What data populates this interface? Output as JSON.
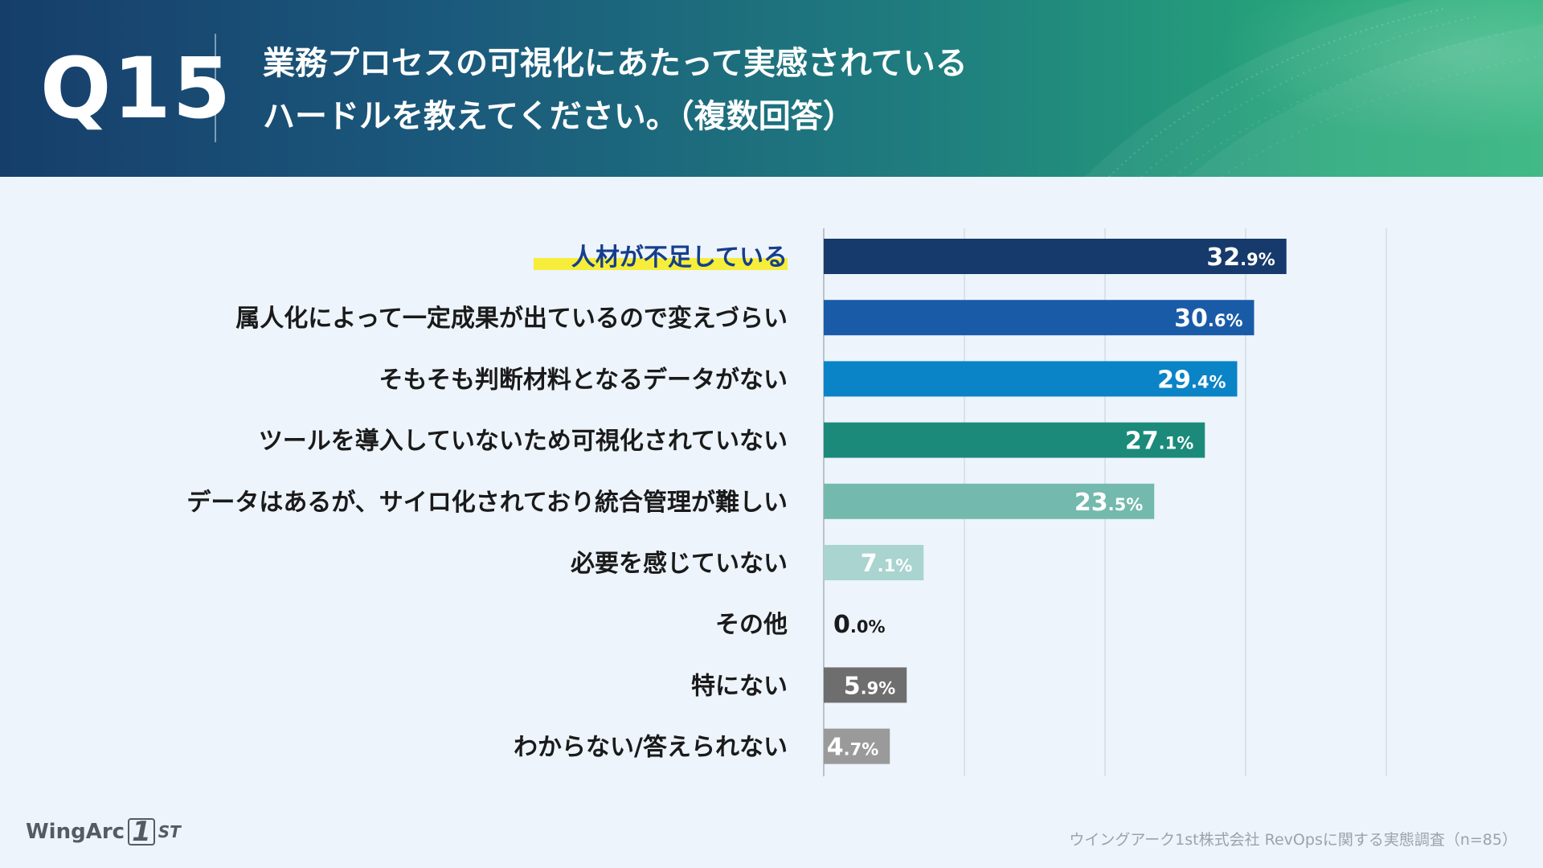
{
  "header": {
    "question_number": "Q15",
    "title_line1": "業務プロセスの可視化にあたって実感されている",
    "title_line2": "ハードルを教えてください。（複数回答）"
  },
  "chart_data": {
    "type": "bar",
    "orientation": "horizontal",
    "title": "業務プロセスの可視化にあたって実感されているハードルを教えてください。（複数回答）",
    "unit": "%",
    "xlim": [
      0,
      40
    ],
    "grid": true,
    "categories": [
      "人材が不足している",
      "属人化によって一定成果が出ているので変えづらい",
      "そもそも判断材料となるデータがない",
      "ツールを導入していないため可視化されていない",
      "データはあるが、サイロ化されており統合管理が難しい",
      "必要を感じていない",
      "その他",
      "特にない",
      "わからない/答えられない"
    ],
    "values": [
      32.9,
      30.6,
      29.4,
      27.1,
      23.5,
      7.1,
      0.0,
      5.9,
      4.7
    ],
    "value_labels": [
      {
        "int": "32",
        "dec": ".9%"
      },
      {
        "int": "30",
        "dec": ".6%"
      },
      {
        "int": "29",
        "dec": ".4%"
      },
      {
        "int": "27",
        "dec": ".1%"
      },
      {
        "int": "23",
        "dec": ".5%"
      },
      {
        "int": "7",
        "dec": ".1%"
      },
      {
        "int": "0",
        "dec": ".0%"
      },
      {
        "int": "5",
        "dec": ".9%"
      },
      {
        "int": "4",
        "dec": ".7%"
      }
    ],
    "colors": [
      "#173a6c",
      "#1a5ba8",
      "#0a84c6",
      "#1b8a7a",
      "#73b9ad",
      "#a9d4cf",
      "#d0d0d0",
      "#6e6e6e",
      "#9a9a9a"
    ],
    "highlight_index": 0,
    "highlight_color": "#f6ee3a"
  },
  "footer": {
    "logo_text": "WingArc",
    "logo_mark": "1",
    "logo_suffix": "ST",
    "source": "ウイングアーク1st株式会社 RevOpsに関する実態調査（n=85）"
  }
}
